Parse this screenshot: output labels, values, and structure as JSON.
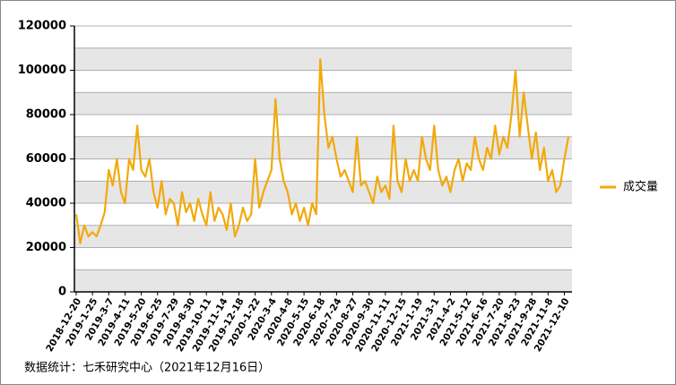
{
  "chart_data": {
    "type": "line",
    "categories": [
      "2018-12-20",
      null,
      null,
      null,
      "2019-1-25",
      null,
      null,
      null,
      "2019-3-7",
      null,
      null,
      null,
      "2019-4-11",
      null,
      null,
      null,
      "2019-5-20",
      null,
      null,
      null,
      "2019-6-25",
      null,
      null,
      null,
      "2019-7-29",
      null,
      null,
      null,
      "2019-8-30",
      null,
      null,
      null,
      "2019-10-11",
      null,
      null,
      null,
      "2019-11-14",
      null,
      null,
      null,
      "2019-12-18",
      null,
      null,
      null,
      "2020-1-22",
      null,
      null,
      null,
      "2020-3-4",
      null,
      null,
      null,
      "2020-4-8",
      null,
      null,
      null,
      "2020-5-15",
      null,
      null,
      null,
      "2020-6-18",
      null,
      null,
      null,
      "2020-7-24",
      null,
      null,
      null,
      "2020-8-27",
      null,
      null,
      null,
      "2020-9-30",
      null,
      null,
      null,
      "2020-11-11",
      null,
      null,
      null,
      "2020-12-15",
      null,
      null,
      null,
      "2021-1-19",
      null,
      null,
      null,
      "2021-3-1",
      null,
      null,
      null,
      "2021-4-2",
      null,
      null,
      null,
      "2021-5-12",
      null,
      null,
      null,
      "2021-6-16",
      null,
      null,
      null,
      "2021-7-20",
      null,
      null,
      null,
      "2021-8-23",
      null,
      null,
      null,
      "2021-9-28",
      null,
      null,
      null,
      "2021-11-8",
      null,
      null,
      null,
      "2021-12-10",
      null
    ],
    "series": [
      {
        "name": "成交量",
        "color": "#f2a90c",
        "values": [
          35000,
          22000,
          30000,
          25000,
          27000,
          25000,
          30000,
          36000,
          55000,
          48000,
          60000,
          45000,
          40000,
          60000,
          55000,
          75000,
          55000,
          52000,
          60000,
          45000,
          38000,
          50000,
          35000,
          42000,
          40000,
          30000,
          45000,
          36000,
          40000,
          32000,
          42000,
          35000,
          30000,
          45000,
          32000,
          38000,
          35000,
          28000,
          40000,
          25000,
          30000,
          38000,
          32000,
          35000,
          60000,
          38000,
          45000,
          50000,
          55000,
          87000,
          60000,
          50000,
          45000,
          35000,
          40000,
          32000,
          38000,
          30000,
          40000,
          35000,
          105000,
          80000,
          65000,
          70000,
          60000,
          52000,
          55000,
          50000,
          45000,
          70000,
          48000,
          50000,
          45000,
          40000,
          52000,
          45000,
          48000,
          42000,
          75000,
          50000,
          45000,
          60000,
          50000,
          55000,
          50000,
          70000,
          60000,
          55000,
          75000,
          55000,
          48000,
          52000,
          45000,
          55000,
          60000,
          50000,
          58000,
          55000,
          70000,
          60000,
          55000,
          65000,
          60000,
          75000,
          62000,
          70000,
          65000,
          80000,
          100000,
          70000,
          90000,
          75000,
          60000,
          72000,
          55000,
          65000,
          50000,
          55000,
          45000,
          48000,
          60000,
          70000
        ]
      }
    ],
    "ylim": [
      0,
      120000
    ],
    "yticks": [
      0,
      20000,
      40000,
      60000,
      80000,
      100000,
      120000
    ],
    "grid": true,
    "legend": "right",
    "footnote": "数据统计：七禾研究中心（2021年12月16日）"
  }
}
